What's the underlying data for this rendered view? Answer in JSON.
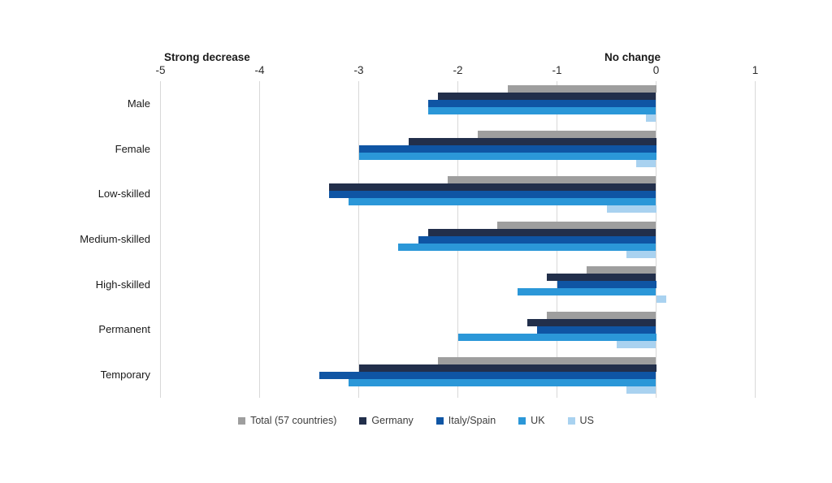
{
  "chart_data": {
    "type": "bar",
    "orientation": "horizontal",
    "title": "",
    "annotations": {
      "left": "Strong decrease",
      "right": "No change"
    },
    "categories": [
      "Male",
      "Female",
      "Low-skilled",
      "Medium-skilled",
      "High-skilled",
      "Permanent",
      "Temporary"
    ],
    "series": [
      {
        "name": "Total (57 countries)",
        "color": "#9e9e9e",
        "values": [
          -1.5,
          -1.8,
          -2.1,
          -1.6,
          -0.7,
          -1.1,
          -2.2
        ]
      },
      {
        "name": "Germany",
        "color": "#222f4b",
        "values": [
          -2.2,
          -2.5,
          -3.3,
          -2.3,
          -1.1,
          -1.3,
          -3.0
        ]
      },
      {
        "name": "Italy/Spain",
        "color": "#0f55a4",
        "values": [
          -2.3,
          -3.0,
          -3.3,
          -2.4,
          -1.0,
          -1.2,
          -3.4
        ]
      },
      {
        "name": "UK",
        "color": "#2b97d8",
        "values": [
          -2.3,
          -3.0,
          -3.1,
          -2.6,
          -1.4,
          -2.0,
          -3.1
        ]
      },
      {
        "name": "US",
        "color": "#a9d2f0",
        "values": [
          -0.1,
          -0.2,
          -0.5,
          -0.3,
          0.1,
          -0.4,
          -0.3
        ]
      }
    ],
    "x_ticks": [
      "-5",
      "-4",
      "-3",
      "-2",
      "-1",
      "0",
      "1"
    ],
    "x_tick_values": [
      -5,
      -4,
      -3,
      -2,
      -1,
      0,
      1
    ],
    "xlim": [
      -5,
      1
    ],
    "grid": true,
    "legend_position": "bottom"
  },
  "colors": {
    "background": "#ffffff",
    "gridline": "#d8d8d8",
    "text": "#1a1a1a"
  }
}
